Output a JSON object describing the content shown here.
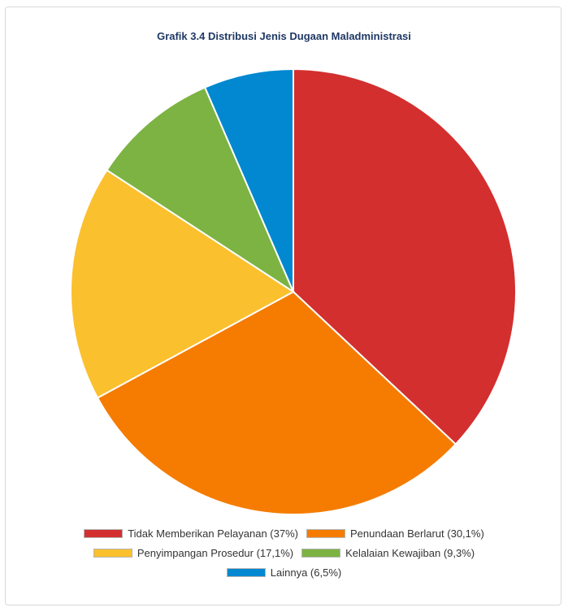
{
  "chart_data": {
    "type": "pie",
    "title": "Grafik 3.4 Distribusi Jenis Dugaan Maladministrasi",
    "legend_position": "bottom",
    "slices": [
      {
        "label": "Tidak Memberikan Pelayanan (37%)",
        "value": 37.0,
        "color": "#d32f2f"
      },
      {
        "label": "Penundaan Berlarut (30,1%)",
        "value": 30.1,
        "color": "#f57c00"
      },
      {
        "label": "Penyimpangan Prosedur (17,1%)",
        "value": 17.1,
        "color": "#fbc02d"
      },
      {
        "label": "Kelalaian Kewajiban (9,3%)",
        "value": 9.3,
        "color": "#7cb342"
      },
      {
        "label": "Lainnya (6,5%)",
        "value": 6.5,
        "color": "#0288d1"
      }
    ]
  }
}
